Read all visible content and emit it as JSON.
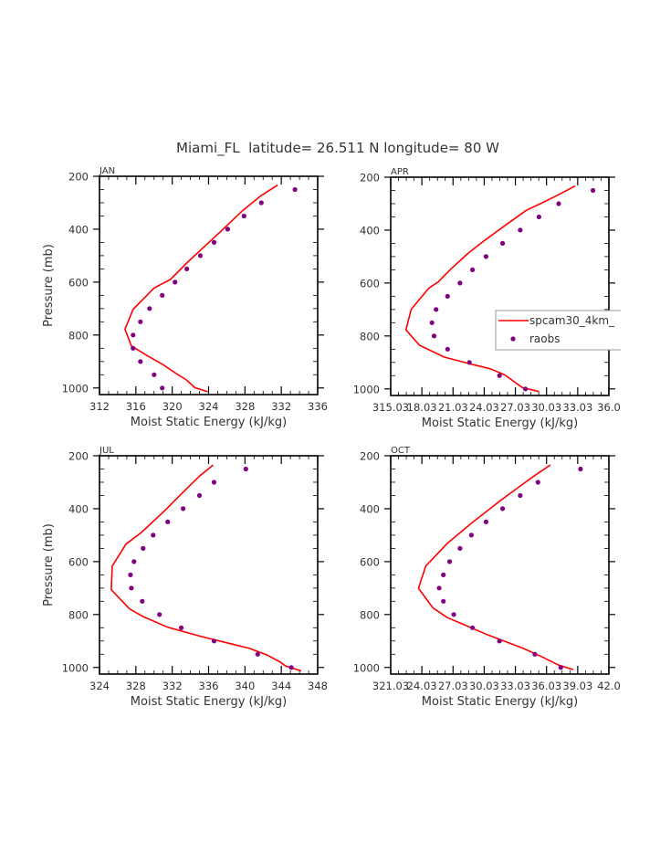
{
  "page": {
    "title": "Miami_FL  latitude= 26.511 N longitude= 80 W"
  },
  "legend": {
    "items": [
      {
        "label": "spcam30_4km_",
        "type": "line",
        "color": "#ff0000"
      },
      {
        "label": "raobs",
        "type": "marker",
        "color": "#800080"
      }
    ]
  },
  "chart_data": [
    {
      "type": "line",
      "panel": "JAN",
      "title": "JAN",
      "xlabel": "Moist Static Energy (kJ/kg)",
      "ylabel": "Pressure (mb)",
      "xlim": [
        312,
        336
      ],
      "ylim": [
        1025,
        200
      ],
      "y_inverted": true,
      "xticks": [
        312,
        316,
        320,
        324,
        328,
        332,
        336
      ],
      "xtick_labels": [
        "312",
        "316",
        "320",
        "324",
        "328",
        "332",
        "336"
      ],
      "yticks": [
        200,
        400,
        600,
        800,
        1000
      ],
      "ytick_labels": [
        "200",
        "400",
        "600",
        "800",
        "1000"
      ],
      "legend": false,
      "series": [
        {
          "name": "spcam30_4km_",
          "kind": "line",
          "color": "#ff0000",
          "x": [
            331.6,
            329.7,
            327.8,
            325.2,
            321.8,
            319.8,
            318.0,
            315.7,
            314.8,
            315.5,
            317.4,
            319.0,
            320.5,
            321.5,
            322.5,
            323.9
          ],
          "y": [
            233,
            275,
            328,
            413,
            521,
            590,
            622,
            703,
            778,
            841,
            881,
            912,
            947,
            968,
            999,
            1014
          ]
        },
        {
          "name": "raobs",
          "kind": "scatter",
          "color": "#800080",
          "x": [
            333.5,
            329.8,
            327.9,
            326.1,
            324.6,
            323.1,
            321.6,
            320.3,
            318.9,
            317.5,
            316.5,
            315.7,
            315.7,
            316.5,
            318.0,
            318.9
          ],
          "y": [
            250,
            300,
            350,
            400,
            450,
            500,
            550,
            600,
            650,
            700,
            750,
            800,
            850,
            900,
            950,
            1000
          ]
        }
      ]
    },
    {
      "type": "line",
      "panel": "APR",
      "title": "APR",
      "xlabel": "Moist Static Energy (kJ/kg)",
      "ylabel": "",
      "xlim": [
        315.03,
        336.03
      ],
      "ylim": [
        1025,
        200
      ],
      "y_inverted": true,
      "xticks": [
        315.03,
        318.03,
        321.03,
        324.03,
        327.03,
        330.03,
        333.03,
        336.03
      ],
      "xtick_labels": [
        "315.03",
        "18.03",
        "21.03",
        "24.03",
        "27.03",
        "30.03",
        "33.03",
        "36.0"
      ],
      "yticks": [
        200,
        400,
        600,
        800,
        1000
      ],
      "ytick_labels": [
        "200",
        "400",
        "600",
        "800",
        "1000"
      ],
      "legend": true,
      "legend_position": "center-right",
      "series": [
        {
          "name": "spcam30_4km_",
          "kind": "line",
          "color": "#ff0000",
          "x": [
            332.8,
            331.1,
            329.6,
            328.1,
            325.8,
            324.0,
            322.5,
            320.9,
            319.6,
            318.7,
            317.0,
            316.5,
            317.8,
            320.2,
            322.8,
            324.6,
            326.0,
            327.7,
            329.3
          ],
          "y": [
            233,
            268,
            297,
            325,
            389,
            441,
            487,
            544,
            596,
            619,
            700,
            777,
            835,
            880,
            907,
            924,
            947,
            995,
            1010
          ]
        },
        {
          "name": "raobs",
          "kind": "scatter",
          "color": "#800080",
          "x": [
            334.5,
            331.2,
            329.3,
            327.5,
            325.8,
            324.2,
            322.9,
            321.7,
            320.5,
            319.4,
            319.0,
            319.2,
            320.5,
            322.6,
            325.5,
            328.0
          ],
          "y": [
            250,
            300,
            350,
            400,
            450,
            500,
            550,
            600,
            650,
            700,
            750,
            800,
            850,
            900,
            950,
            1000
          ]
        }
      ]
    },
    {
      "type": "line",
      "panel": "JUL",
      "title": "JUL",
      "xlabel": "Moist Static Energy (kJ/kg)",
      "ylabel": "Pressure (mb)",
      "xlim": [
        324,
        348
      ],
      "ylim": [
        1025,
        200
      ],
      "y_inverted": true,
      "xticks": [
        324,
        328,
        332,
        336,
        340,
        344,
        348
      ],
      "xtick_labels": [
        "324",
        "328",
        "332",
        "336",
        "340",
        "344",
        "348"
      ],
      "yticks": [
        200,
        400,
        600,
        800,
        1000
      ],
      "ytick_labels": [
        "200",
        "400",
        "600",
        "800",
        "1000"
      ],
      "legend": false,
      "series": [
        {
          "name": "spcam30_4km_",
          "kind": "line",
          "color": "#ff0000",
          "x": [
            336.5,
            335.0,
            333.1,
            331.1,
            328.6,
            326.9,
            325.4,
            325.3,
            327.3,
            328.8,
            331.5,
            335.1,
            340.5,
            342.5,
            343.9,
            344.5,
            346.2
          ],
          "y": [
            235,
            277,
            341,
            410,
            490,
            534,
            617,
            706,
            779,
            808,
            848,
            882,
            928,
            954,
            980,
            995,
            1013
          ]
        },
        {
          "name": "raobs",
          "kind": "scatter",
          "color": "#800080",
          "x": [
            340.1,
            336.6,
            335.0,
            333.2,
            331.5,
            329.9,
            328.8,
            327.8,
            327.4,
            327.5,
            328.7,
            330.6,
            333.0,
            336.6,
            341.4,
            345.1
          ],
          "y": [
            250,
            300,
            350,
            400,
            450,
            500,
            550,
            600,
            650,
            700,
            750,
            800,
            850,
            900,
            950,
            1000
          ]
        }
      ]
    },
    {
      "type": "line",
      "panel": "OCT",
      "title": "OCT",
      "xlabel": "Moist Static Energy (kJ/kg)",
      "ylabel": "",
      "xlim": [
        321.03,
        342.03
      ],
      "ylim": [
        1025,
        200
      ],
      "y_inverted": true,
      "xticks": [
        321.03,
        324.03,
        327.03,
        330.03,
        333.03,
        336.03,
        339.03,
        342.03
      ],
      "xtick_labels": [
        "321.03",
        "24.03",
        "27.03",
        "30.03",
        "33.03",
        "36.03",
        "39.03",
        "42.0"
      ],
      "yticks": [
        200,
        400,
        600,
        800,
        1000
      ],
      "ytick_labels": [
        "200",
        "400",
        "600",
        "800",
        "1000"
      ],
      "legend": false,
      "series": [
        {
          "name": "spcam30_4km_",
          "kind": "line",
          "color": "#ff0000",
          "x": [
            336.4,
            334.8,
            333.2,
            331.4,
            328.8,
            326.5,
            324.4,
            323.7,
            325.1,
            326.5,
            327.9,
            330.3,
            333.8,
            335.6,
            337.2,
            338.6
          ],
          "y": [
            235,
            277,
            323,
            375,
            455,
            530,
            617,
            701,
            775,
            812,
            835,
            876,
            928,
            960,
            991,
            1008
          ]
        },
        {
          "name": "raobs",
          "kind": "scatter",
          "color": "#800080",
          "x": [
            339.3,
            335.2,
            333.5,
            331.8,
            330.2,
            328.8,
            327.7,
            326.7,
            326.1,
            325.7,
            326.1,
            327.1,
            328.9,
            331.5,
            334.9,
            337.4
          ],
          "y": [
            250,
            300,
            350,
            400,
            450,
            500,
            550,
            600,
            650,
            700,
            750,
            800,
            850,
            900,
            950,
            1000
          ]
        }
      ]
    }
  ]
}
